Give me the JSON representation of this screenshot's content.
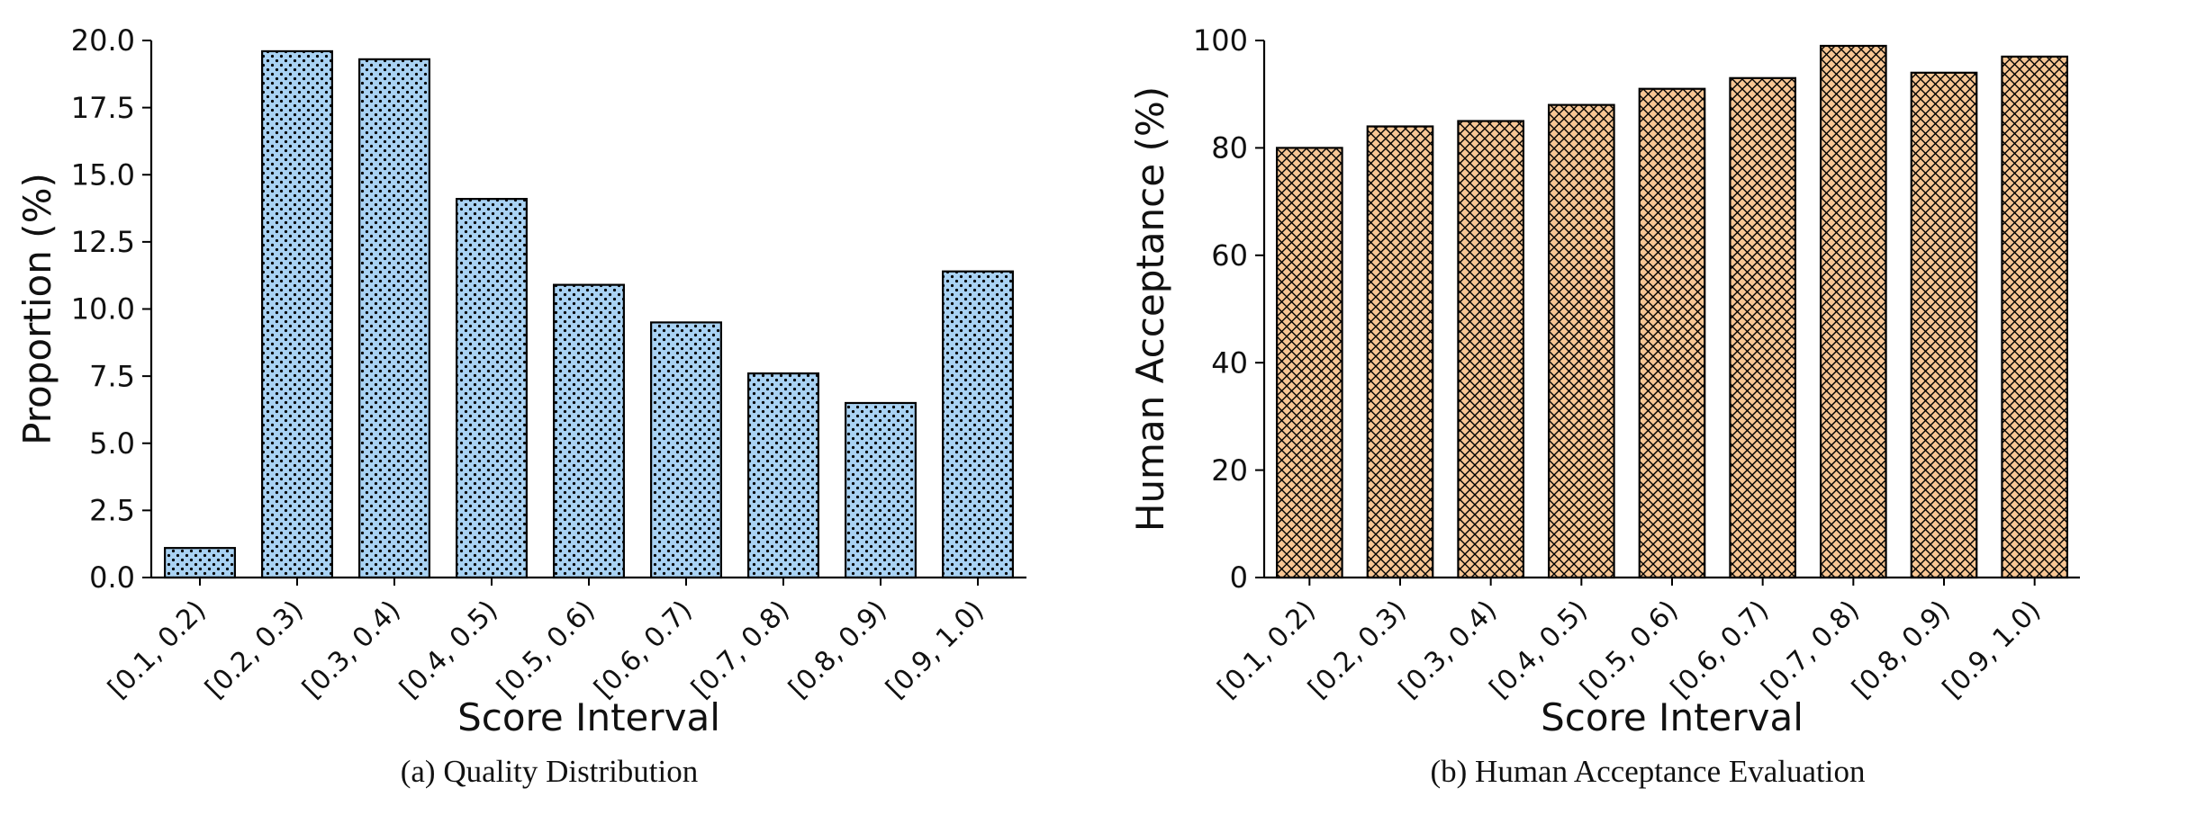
{
  "figure": {
    "background": "#ffffff"
  },
  "panels": [
    {
      "caption": "(a) Quality Distribution"
    },
    {
      "caption": "(b) Human Acceptance Evaluation"
    }
  ],
  "chart_data": [
    {
      "type": "bar",
      "title": "(a) Quality Distribution",
      "categories": [
        "[0.1, 0.2)",
        "[0.2, 0.3)",
        "[0.3, 0.4)",
        "[0.4, 0.5)",
        "[0.5, 0.6)",
        "[0.6, 0.7)",
        "[0.7, 0.8)",
        "[0.8, 0.9)",
        "[0.9, 1.0)"
      ],
      "values": [
        1.1,
        19.6,
        19.3,
        14.1,
        10.9,
        9.5,
        7.6,
        6.5,
        11.4
      ],
      "xlabel": "Score Interval",
      "ylabel": "Proportion (%)",
      "ylim": [
        0,
        20
      ],
      "yticks": [
        "0.0",
        "2.5",
        "5.0",
        "7.5",
        "10.0",
        "12.5",
        "15.0",
        "17.5",
        "20.0"
      ],
      "bar_color": "#a9d2f3",
      "edge_color": "#000000",
      "hatch": "dots",
      "grid": false,
      "legend": "none"
    },
    {
      "type": "bar",
      "title": "(b) Human Acceptance Evaluation",
      "categories": [
        "[0.1, 0.2)",
        "[0.2, 0.3)",
        "[0.3, 0.4)",
        "[0.4, 0.5)",
        "[0.5, 0.6)",
        "[0.6, 0.7)",
        "[0.7, 0.8)",
        "[0.8, 0.9)",
        "[0.9, 1.0)"
      ],
      "values": [
        80,
        84,
        85,
        88,
        91,
        93,
        99,
        94,
        97
      ],
      "xlabel": "Score Interval",
      "ylabel": "Human Acceptance (%)",
      "ylim": [
        0,
        100
      ],
      "yticks": [
        "0",
        "20",
        "40",
        "60",
        "80",
        "100"
      ],
      "bar_color": "#f7c694",
      "edge_color": "#000000",
      "hatch": "cross",
      "grid": false,
      "legend": "none"
    }
  ]
}
